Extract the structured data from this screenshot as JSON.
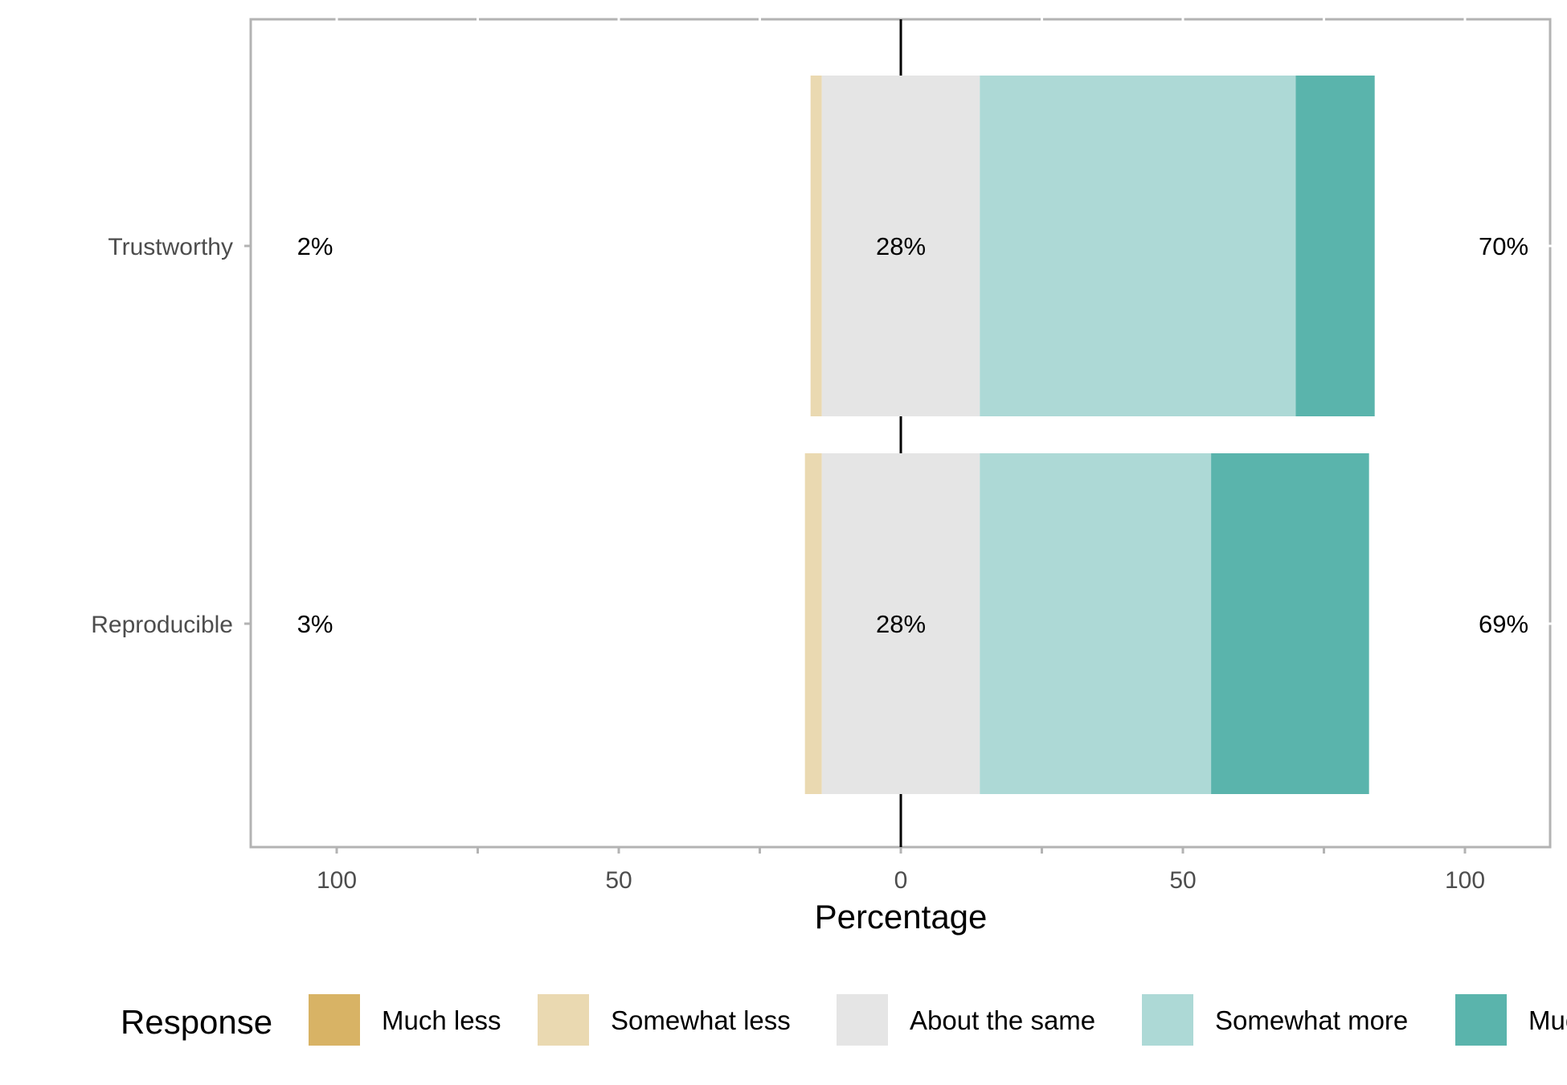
{
  "chart_data": {
    "type": "bar",
    "orientation": "horizontal",
    "stacking": "diverging",
    "categories": [
      "Trustworthy",
      "Reproducible"
    ],
    "xlabel": "Percentage",
    "x_ticks": [
      100,
      50,
      0,
      50,
      100
    ],
    "xlim": [
      -100,
      100
    ],
    "grid": false,
    "legend_title": "Response",
    "legend_position": "bottom",
    "series": [
      {
        "name": "Much less",
        "color": "#D8B365",
        "values": [
          0,
          0
        ]
      },
      {
        "name": "Somewhat less",
        "color": "#EAD9B1",
        "values": [
          2,
          3
        ]
      },
      {
        "name": "About the same",
        "color": "#E5E5E5",
        "values": [
          28,
          28
        ]
      },
      {
        "name": "Somewhat more",
        "color": "#ADD9D6",
        "values": [
          56,
          41
        ]
      },
      {
        "name": "Much more",
        "color": "#5AB4AC",
        "values": [
          14,
          28
        ]
      }
    ],
    "summary_labels": [
      {
        "category": "Trustworthy",
        "negative": "2%",
        "neutral": "28%",
        "positive": "70%"
      },
      {
        "category": "Reproducible",
        "negative": "3%",
        "neutral": "28%",
        "positive": "69%"
      }
    ]
  }
}
